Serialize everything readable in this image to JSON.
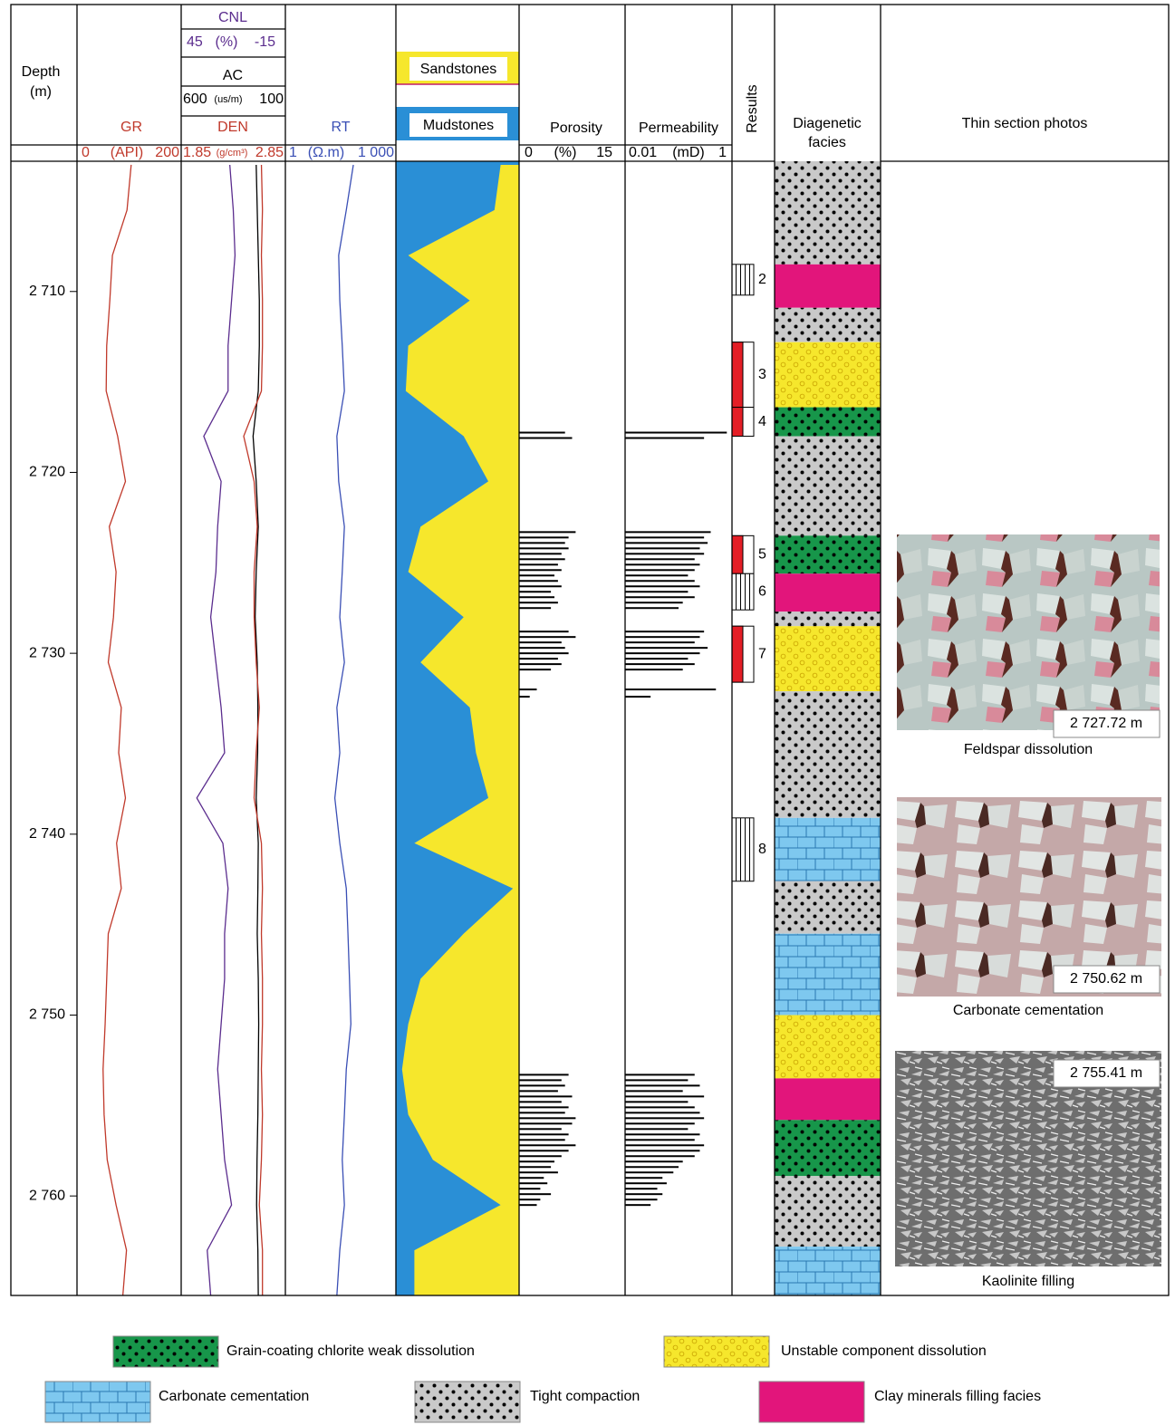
{
  "header": {
    "depth": [
      "Depth",
      "(m)"
    ],
    "gr": {
      "name": "GR",
      "unit": "(API)",
      "range": [
        0,
        200
      ],
      "color": "#c0392b"
    },
    "den": {
      "name": "DEN",
      "unit": "(g/cm³)",
      "range": [
        1.85,
        2.85
      ],
      "color": "#c0392b"
    },
    "cnl": {
      "name": "CNL",
      "unit": "(%)",
      "range": [
        45,
        -15
      ],
      "color": "#5b2d8e"
    },
    "ac": {
      "name": "AC",
      "unit": "(us/m)",
      "range": [
        600,
        100
      ],
      "color": "#000000"
    },
    "rt": {
      "name": "RT",
      "unit": "(Ω.m)",
      "range": [
        1,
        {
          "value": 1000,
          "label": "1 000"
        }
      ],
      "color": "#3a4fb5",
      "log": true
    },
    "lithology": [
      "Sandstones",
      "Mudstones"
    ],
    "porosity": {
      "name": "Porosity",
      "unit": "(%)",
      "range": [
        0,
        15
      ]
    },
    "permeability": {
      "name": "Permeability",
      "unit": "(mD)",
      "range": [
        0.01,
        1
      ],
      "log": true
    },
    "results": "Results",
    "facies": [
      "Diagenetic",
      "facies"
    ],
    "photos": "Thin section photos"
  },
  "depth_axis": {
    "ylim": [
      2702.8,
      2765.5
    ],
    "ticks": [
      {
        "value": 2710,
        "label": "2 710"
      },
      {
        "value": 2720,
        "label": "2 720"
      },
      {
        "value": 2730,
        "label": "2 730"
      },
      {
        "value": 2740,
        "label": "2 740"
      },
      {
        "value": 2750,
        "label": "2 750"
      },
      {
        "value": 2760,
        "label": "2 760"
      }
    ]
  },
  "curves": {
    "depths": [
      2703,
      2705.5,
      2708,
      2710.5,
      2713,
      2715.5,
      2718,
      2720.5,
      2723,
      2725.5,
      2728,
      2730.5,
      2733,
      2735.5,
      2738,
      2740.5,
      2743,
      2745.5,
      2748,
      2750.5,
      2753,
      2755.5,
      2758,
      2760.5,
      2763,
      2765.5
    ],
    "gr": [
      104,
      96,
      68,
      63,
      57,
      56,
      78,
      93,
      62,
      75,
      70,
      60,
      85,
      80,
      93,
      76,
      85,
      60,
      57,
      54,
      50,
      52,
      58,
      75,
      95,
      88
    ],
    "den": [
      2.62,
      2.63,
      2.62,
      2.63,
      2.63,
      2.62,
      2.45,
      2.55,
      2.58,
      2.55,
      2.55,
      2.57,
      2.6,
      2.57,
      2.55,
      2.62,
      2.63,
      2.62,
      2.63,
      2.63,
      2.62,
      2.63,
      2.62,
      2.6,
      2.63,
      2.63
    ],
    "cnl": [
      17,
      15,
      14,
      16,
      18,
      18,
      32,
      22,
      24,
      25,
      28,
      25,
      22,
      20,
      36,
      21,
      18,
      20,
      20,
      22,
      24,
      22,
      20,
      16,
      30,
      28
    ],
    "ac": [
      240,
      235,
      230,
      225,
      225,
      230,
      255,
      240,
      230,
      240,
      245,
      235,
      232,
      233,
      240,
      230,
      232,
      235,
      230,
      228,
      230,
      232,
      236,
      238,
      232,
      230
    ],
    "rt": [
      70,
      45,
      28,
      30,
      35,
      40,
      25,
      28,
      40,
      35,
      30,
      40,
      25,
      30,
      22,
      30,
      45,
      50,
      55,
      60,
      45,
      40,
      35,
      40,
      30,
      25
    ],
    "sand_boundary": [
      0.85,
      0.8,
      0.1,
      0.6,
      0.1,
      0.08,
      0.55,
      0.75,
      0.2,
      0.1,
      0.55,
      0.2,
      0.6,
      0.65,
      0.75,
      0.15,
      0.95,
      0.55,
      0.2,
      0.1,
      0.05,
      0.1,
      0.3,
      0.85,
      0.15,
      0.15
    ]
  },
  "bars": {
    "depths": [
      2717.8,
      2718.1,
      2723.3,
      2723.6,
      2723.9,
      2724.2,
      2724.5,
      2724.8,
      2725.1,
      2725.4,
      2725.7,
      2726,
      2726.3,
      2726.6,
      2726.9,
      2727.2,
      2727.5,
      2728.8,
      2729.1,
      2729.4,
      2729.7,
      2730,
      2730.3,
      2730.6,
      2730.9,
      2732,
      2732.4,
      2753.3,
      2753.6,
      2753.9,
      2754.2,
      2754.5,
      2754.8,
      2755.1,
      2755.4,
      2755.7,
      2756,
      2756.3,
      2756.6,
      2756.9,
      2757.2,
      2757.5,
      2757.8,
      2758.1,
      2758.4,
      2758.7,
      2759,
      2759.3,
      2759.6,
      2759.9,
      2760.2,
      2760.5
    ],
    "porosity": [
      6.5,
      7.5,
      8,
      7,
      6.5,
      7,
      6,
      6.5,
      5.5,
      6,
      5,
      5.5,
      6,
      4.5,
      5,
      5.5,
      4.5,
      7,
      8,
      6,
      6.5,
      7,
      5.5,
      6,
      4.5,
      2.5,
      1.5,
      7,
      6,
      6.5,
      5.5,
      7.5,
      6,
      7,
      6.5,
      8,
      7.5,
      6,
      7,
      6.5,
      8,
      7,
      6,
      5,
      4.5,
      5.5,
      3.5,
      4,
      3,
      4.5,
      3,
      2.5
    ],
    "permeability": [
      0.8,
      0.3,
      0.4,
      0.3,
      0.35,
      0.25,
      0.3,
      0.2,
      0.25,
      0.2,
      0.15,
      0.2,
      0.25,
      0.15,
      0.2,
      0.12,
      0.1,
      0.3,
      0.25,
      0.2,
      0.35,
      0.25,
      0.15,
      0.2,
      0.12,
      0.5,
      0.03,
      0.2,
      0.15,
      0.25,
      0.12,
      0.3,
      0.15,
      0.2,
      0.25,
      0.3,
      0.2,
      0.15,
      0.25,
      0.2,
      0.3,
      0.25,
      0.2,
      0.12,
      0.1,
      0.08,
      0.05,
      0.06,
      0.04,
      0.05,
      0.04,
      0.03
    ]
  },
  "results": [
    {
      "top": 2708.5,
      "base": 2710.2,
      "label": "2",
      "hatched": true
    },
    {
      "top": 2712.8,
      "base": 2716.4,
      "label": "3",
      "hatched": false
    },
    {
      "top": 2716.4,
      "base": 2718.0,
      "label": "4",
      "hatched": false
    },
    {
      "top": 2723.5,
      "base": 2725.6,
      "label": "5",
      "hatched": false
    },
    {
      "top": 2725.6,
      "base": 2727.6,
      "label": "6",
      "hatched": true
    },
    {
      "top": 2728.5,
      "base": 2731.6,
      "label": "7",
      "hatched": false
    },
    {
      "top": 2739.1,
      "base": 2742.6,
      "label": "8",
      "hatched": true
    }
  ],
  "facies": [
    {
      "top": 2702.8,
      "base": 2708.5,
      "legend": 3
    },
    {
      "top": 2708.5,
      "base": 2710.9,
      "legend": 4
    },
    {
      "top": 2710.9,
      "base": 2712.8,
      "legend": 3
    },
    {
      "top": 2712.8,
      "base": 2716.4,
      "legend": 1
    },
    {
      "top": 2716.4,
      "base": 2718.0,
      "legend": 0
    },
    {
      "top": 2718.0,
      "base": 2723.5,
      "legend": 3
    },
    {
      "top": 2723.5,
      "base": 2725.6,
      "legend": 0
    },
    {
      "top": 2725.6,
      "base": 2727.7,
      "legend": 4
    },
    {
      "top": 2727.7,
      "base": 2728.5,
      "legend": 3
    },
    {
      "top": 2728.5,
      "base": 2732.1,
      "legend": 1
    },
    {
      "top": 2732.1,
      "base": 2739.1,
      "legend": 3
    },
    {
      "top": 2739.1,
      "base": 2742.6,
      "legend": 2
    },
    {
      "top": 2742.6,
      "base": 2745.5,
      "legend": 3
    },
    {
      "top": 2745.5,
      "base": 2750.0,
      "legend": 2
    },
    {
      "top": 2750.0,
      "base": 2753.5,
      "legend": 1
    },
    {
      "top": 2753.5,
      "base": 2755.8,
      "legend": 4
    },
    {
      "top": 2755.8,
      "base": 2758.9,
      "legend": 0
    },
    {
      "top": 2758.9,
      "base": 2762.8,
      "legend": 3
    },
    {
      "top": 2762.8,
      "base": 2765.5,
      "legend": 2
    }
  ],
  "photos": [
    {
      "depth_label": "2 727.72 m",
      "caption": "Feldspar dissolution"
    },
    {
      "depth_label": "2 750.62 m",
      "caption": "Carbonate cementation"
    },
    {
      "depth_label": "2 755.41 m",
      "caption": "Kaolinite filling"
    }
  ],
  "legend": [
    "Grain-coating chlorite weak dissolution",
    "Unstable component dissolution",
    "Carbonate cementation",
    "Tight compaction",
    "Clay minerals filling facies"
  ]
}
